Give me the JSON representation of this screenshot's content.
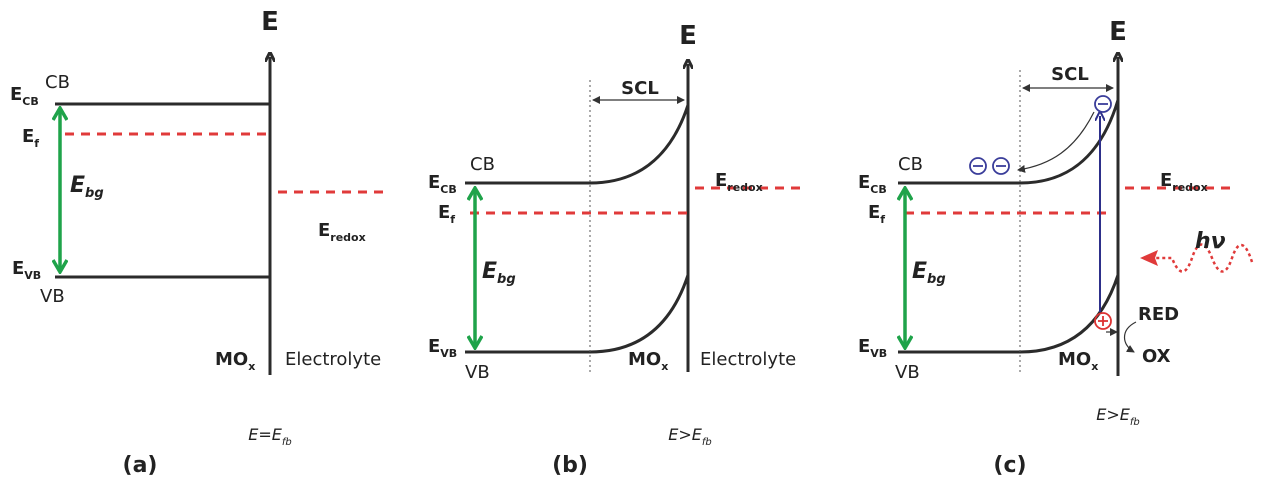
{
  "panels": [
    {
      "caption": "(a)",
      "condition": {
        "main": "E=E",
        "sub": "fb"
      },
      "axis": "E",
      "labels": {
        "ecb": {
          "main": "E",
          "sub": "CB"
        },
        "cb": "CB",
        "ef": {
          "main": "E",
          "sub": "f"
        },
        "ebg": {
          "main": "E",
          "sub": "bg"
        },
        "evb": {
          "main": "E",
          "sub": "VB"
        },
        "vb": "VB",
        "eredox": {
          "main": "E",
          "sub": "redox"
        },
        "mox": {
          "main": "MO",
          "sub": "x"
        },
        "electrolyte": "Electrolyte"
      }
    },
    {
      "caption": "(b)",
      "condition": {
        "main": "E>E",
        "sub": "fb"
      },
      "axis": "E",
      "labels": {
        "ecb": {
          "main": "E",
          "sub": "CB"
        },
        "cb": "CB",
        "ef": {
          "main": "E",
          "sub": "f"
        },
        "ebg": {
          "main": "E",
          "sub": "bg"
        },
        "evb": {
          "main": "E",
          "sub": "VB"
        },
        "vb": "VB",
        "eredox": {
          "main": "E",
          "sub": "redox"
        },
        "mox": {
          "main": "MO",
          "sub": "x"
        },
        "electrolyte": "Electrolyte",
        "scl": "SCL"
      }
    },
    {
      "caption": "(c)",
      "condition": {
        "main": "E>E",
        "sub": "fb"
      },
      "axis": "E",
      "labels": {
        "ecb": {
          "main": "E",
          "sub": "CB"
        },
        "cb": "CB",
        "ef": {
          "main": "E",
          "sub": "f"
        },
        "ebg": {
          "main": "E",
          "sub": "bg"
        },
        "evb": {
          "main": "E",
          "sub": "VB"
        },
        "vb": "VB",
        "eredox": {
          "main": "E",
          "sub": "redox"
        },
        "mox": {
          "main": "MO",
          "sub": "x"
        },
        "scl": "SCL",
        "red": "RED",
        "ox": "OX",
        "hv": "hν"
      }
    }
  ]
}
